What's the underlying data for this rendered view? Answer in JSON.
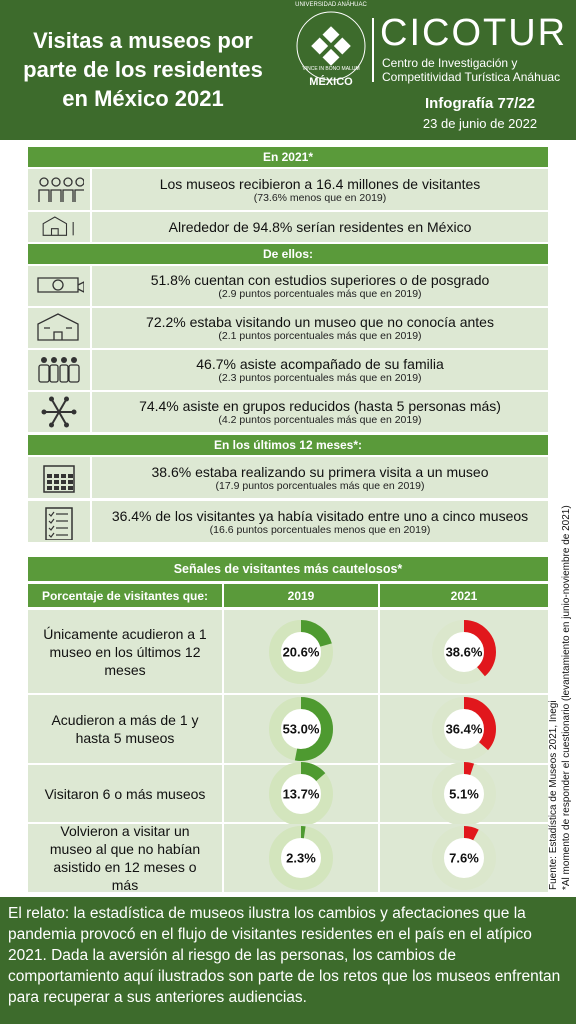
{
  "header": {
    "title": "Visitas a museos por parte de los residentes en México 2021",
    "university": "UNIVERSIDAD ANÁHUAC",
    "motto": "VINCE IN BONO MALUM",
    "city": "MÉXICO",
    "brand": "CICOTUR",
    "center": "Centro de Investigación y Competitividad Turística Anáhuac",
    "infographic": "Infografía 77/22",
    "date": "23 de junio de 2022"
  },
  "sections": [
    {
      "heading": "En 2021*",
      "items": [
        {
          "text": "Los museos recibieron a 16.4 millones de visitantes",
          "note": "(73.6% menos que en 2019)"
        },
        {
          "text": "Alrededor de 94.8% serían residentes en México"
        }
      ]
    },
    {
      "heading": "De ellos:",
      "items": [
        {
          "text": "51.8% cuentan con estudios superiores o de posgrado",
          "note": "(2.9 puntos porcentuales más que en 2019)"
        },
        {
          "text": "72.2% estaba visitando un museo que no conocía antes",
          "note": "(2.1 puntos porcentuales más que en 2019)"
        },
        {
          "text": "46.7% asiste acompañado de su familia",
          "note": "(2.3 puntos porcentuales más que en 2019)"
        },
        {
          "text": "74.4% asiste en grupos reducidos (hasta 5 personas más)",
          "note": "(4.2 puntos porcentuales más que en 2019)"
        }
      ]
    },
    {
      "heading": "En los últimos 12 meses*:",
      "items": [
        {
          "text": "38.6% estaba realizando su primera visita a un museo",
          "note": "(17.9 puntos porcentuales más que en 2019)"
        },
        {
          "text": "36.4% de los visitantes ya había visitado entre uno a cinco museos",
          "note": "(16.6 puntos porcentuales menos que en 2019)"
        }
      ]
    }
  ],
  "source": "Fuente: Estadística de Museos 2021, Inegi",
  "footnote": "*Al momento de responder el cuestionario (levantamiento en junio-noviembre de 2021)",
  "table": {
    "title": "Señales de visitantes más cautelosos*",
    "columns": [
      "Porcentaje de visitantes que:",
      "2019",
      "2021"
    ],
    "rows": [
      {
        "label": "Únicamente acudieron a 1 museo en los últimos 12 meses",
        "cells": [
          {
            "value": 20.6,
            "label": "20.6%"
          },
          {
            "value": 38.6,
            "label": "38.6%"
          }
        ]
      },
      {
        "label": "Acudieron a más de 1 y hasta 5 museos",
        "cells": [
          {
            "value": 53.0,
            "label": "53.0%"
          },
          {
            "value": 36.4,
            "label": "36.4%"
          }
        ]
      },
      {
        "label": "Visitaron 6 o más museos",
        "cells": [
          {
            "value": 13.7,
            "label": "13.7%"
          },
          {
            "value": 5.1,
            "label": "5.1%"
          }
        ]
      },
      {
        "label": "Volvieron a visitar un museo al que no habían asistido en 12 meses o más",
        "cells": [
          {
            "value": 2.3,
            "label": "2.3%"
          },
          {
            "value": 7.6,
            "label": "7.6%"
          }
        ]
      }
    ]
  },
  "story": "El relato: la estadística de museos ilustra los cambios y afectaciones que la pandemia provocó en el flujo de visitantes residentes en el país en el atípico 2021. Dada la aversión al riesgo de las personas, los cambios de comportamiento aquí ilustrados son parte de los retos que los museos enfrentan para recuperar a sus anteriores audiencias."
}
